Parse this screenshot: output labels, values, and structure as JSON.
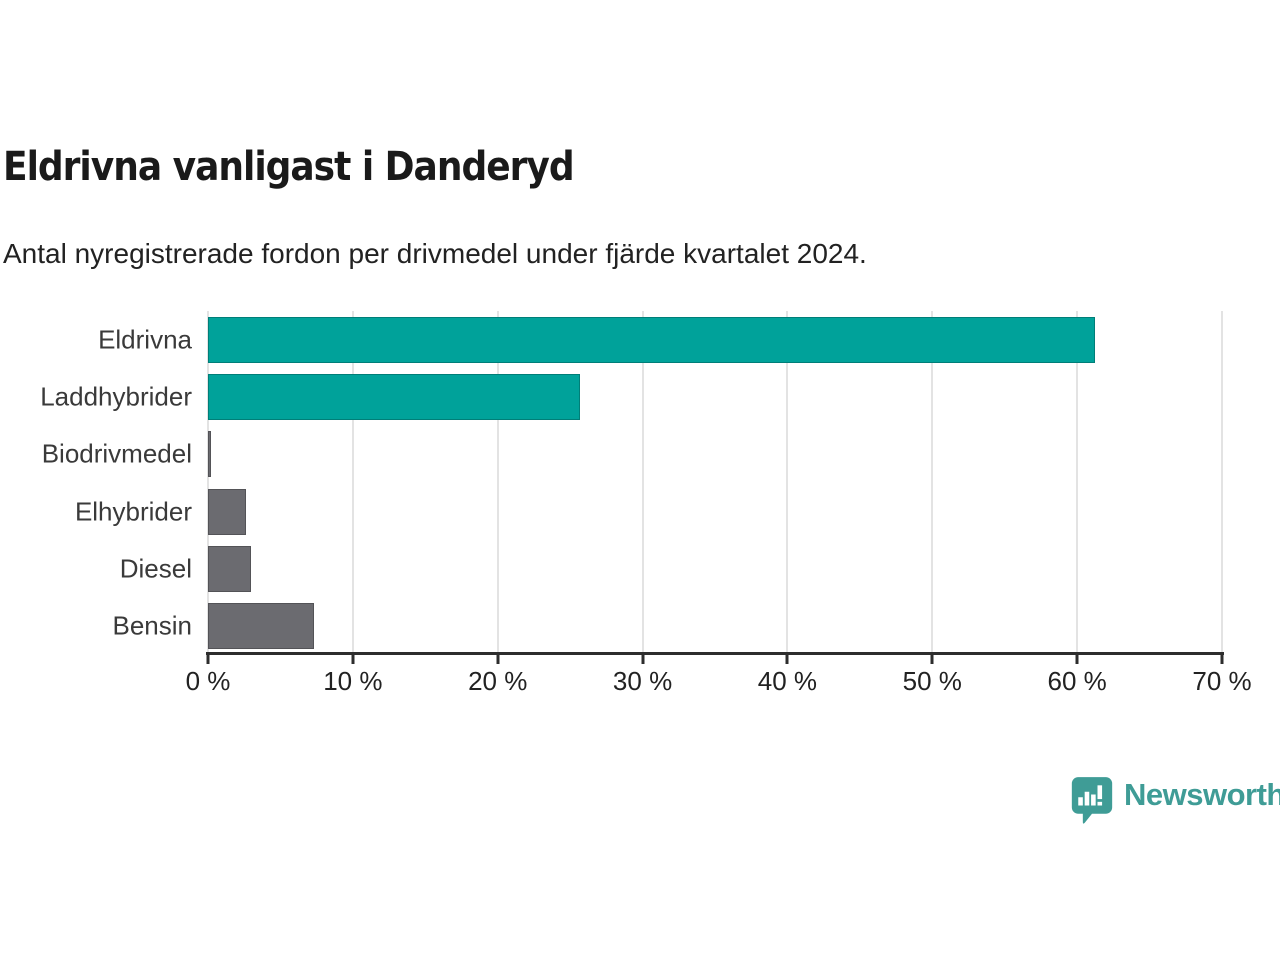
{
  "header": {
    "title": "Eldrivna vanligast i Danderyd",
    "subtitle": "Antal nyregistrerade fordon per drivmedel under fjärde kvartalet 2024."
  },
  "chart_data": {
    "type": "bar",
    "orientation": "horizontal",
    "title": "Eldrivna vanligast i Danderyd",
    "subtitle": "Antal nyregistrerade fordon per drivmedel under fjärde kvartalet 2024.",
    "categories": [
      "Eldrivna",
      "Laddhybrider",
      "Biodrivmedel",
      "Elhybrider",
      "Diesel",
      "Bensin"
    ],
    "values": [
      61.2,
      25.7,
      0.2,
      2.6,
      3.0,
      7.3
    ],
    "unit": "%",
    "bar_colors": [
      "#00a29a",
      "#00a29a",
      "#6b6b70",
      "#6b6b70",
      "#6b6b70",
      "#6b6b70"
    ],
    "highlight_color": "#00a29a",
    "default_color": "#6b6b70",
    "xlim": [
      0,
      70
    ],
    "x_ticks": [
      0,
      10,
      20,
      30,
      40,
      50,
      60,
      70
    ],
    "x_tick_labels": [
      "0 %",
      "10 %",
      "20 %",
      "30 %",
      "40 %",
      "50 %",
      "60 %",
      "70 %"
    ],
    "grid": true,
    "gridline_color": "#e3e3e3",
    "axis_color": "#2d2d2d",
    "legend": "none"
  },
  "footer": {
    "brand": "Newsworthy",
    "brand_color": "#3f9c96",
    "logo_icon": "newsworthy-speech-bubble-chart-icon"
  }
}
